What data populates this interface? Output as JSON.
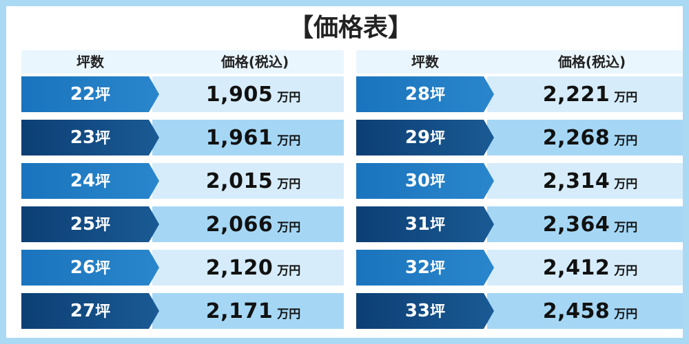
{
  "title": "【価格表】",
  "headers": {
    "tsubo": "坪数",
    "price": "価格(税込)"
  },
  "unit_tsubo": "坪",
  "unit_price": "万円",
  "left_rows": [
    {
      "tsubo": "22",
      "price": "1,905"
    },
    {
      "tsubo": "23",
      "price": "1,961"
    },
    {
      "tsubo": "24",
      "price": "2,015"
    },
    {
      "tsubo": "25",
      "price": "2,066"
    },
    {
      "tsubo": "26",
      "price": "2,120"
    },
    {
      "tsubo": "27",
      "price": "2,171"
    }
  ],
  "right_rows": [
    {
      "tsubo": "28",
      "price": "2,221"
    },
    {
      "tsubo": "29",
      "price": "2,268"
    },
    {
      "tsubo": "30",
      "price": "2,314"
    },
    {
      "tsubo": "31",
      "price": "2,364"
    },
    {
      "tsubo": "32",
      "price": "2,412"
    },
    {
      "tsubo": "33",
      "price": "2,458"
    }
  ],
  "colors": {
    "border": "#a9d9f3",
    "tsubo_light": "#1a74bd",
    "tsubo_dark": "#0c3f74",
    "price_light": "#d6ecfa",
    "price_dark": "#a5d7f5"
  }
}
